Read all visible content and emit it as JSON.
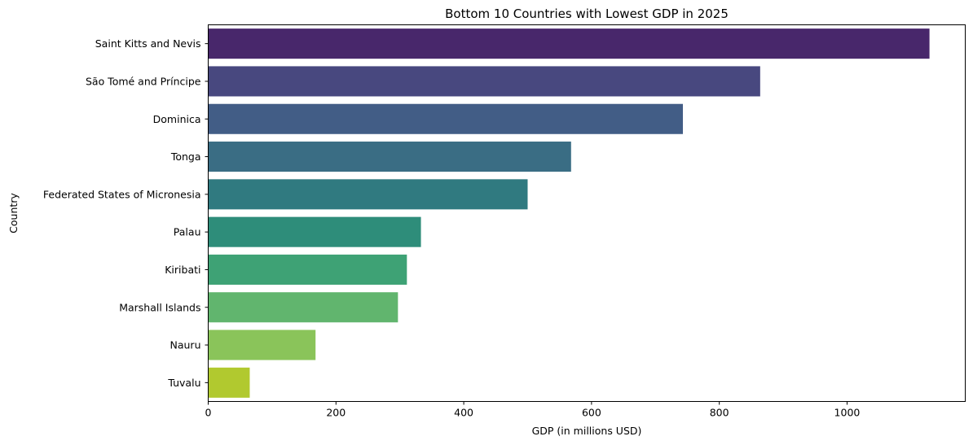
{
  "chart_data": {
    "type": "bar",
    "orientation": "horizontal",
    "title": "Bottom 10 Countries with Lowest GDP in 2025",
    "xlabel": "GDP (in millions USD)",
    "ylabel": "Country",
    "xlim": [
      0,
      1185
    ],
    "xticks": [
      0,
      200,
      400,
      600,
      800,
      1000
    ],
    "grid": false,
    "categories": [
      "Saint Kitts and Nevis",
      "São Tomé and Príncipe",
      "Dominica",
      "Tonga",
      "Federated States of Micronesia",
      "Palau",
      "Kiribati",
      "Marshall Islands",
      "Nauru",
      "Tuvalu"
    ],
    "values": [
      1129,
      864,
      743,
      568,
      500,
      333,
      311,
      297,
      168,
      65
    ],
    "colors": [
      "#48276b",
      "#48487f",
      "#425d86",
      "#3a6d84",
      "#307a80",
      "#2e8d7a",
      "#3ea275",
      "#61b56e",
      "#8ac45a",
      "#b1c92f"
    ]
  }
}
